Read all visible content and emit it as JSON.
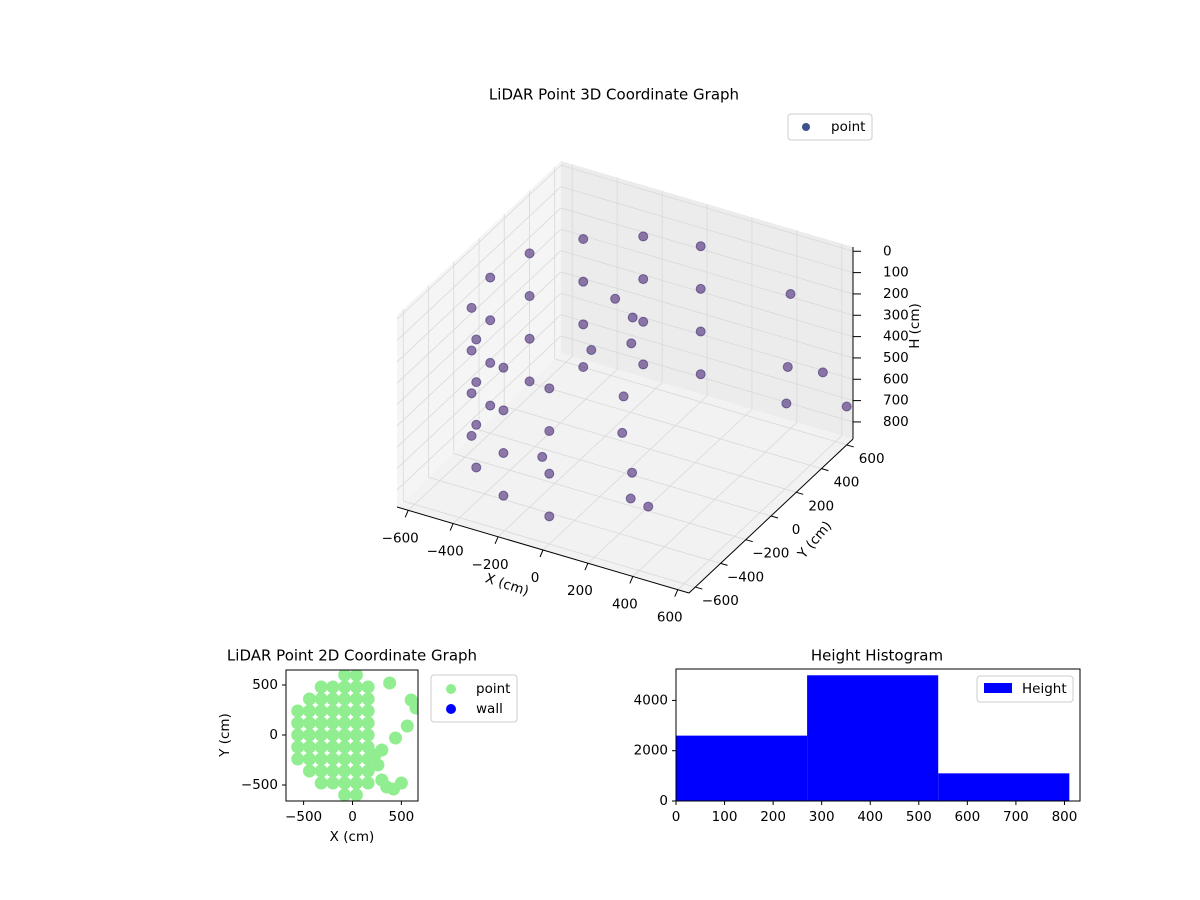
{
  "chart_data": [
    {
      "type": "scatter3d",
      "title": "LiDAR Point 3D Coordinate Graph",
      "x_label": "X (cm)",
      "y_label": "Y (cm)",
      "z_label": "H (cm)",
      "xlim": [
        -650,
        650
      ],
      "ylim": [
        -650,
        650
      ],
      "zlim": [
        -20,
        880
      ],
      "z_inverted": true,
      "xticks": [
        {
          "value": -600,
          "label": "−600"
        },
        {
          "value": -400,
          "label": "−400"
        },
        {
          "value": -200,
          "label": "−200"
        },
        0,
        200,
        400,
        600
      ],
      "yticks": [
        {
          "value": -600,
          "label": "−600"
        },
        {
          "value": -400,
          "label": "−400"
        },
        {
          "value": -200,
          "label": "−200"
        },
        0,
        200,
        400,
        600
      ],
      "zticks": [
        0,
        100,
        200,
        300,
        400,
        500,
        600,
        700,
        800
      ],
      "legend": "upper right",
      "series": [
        {
          "name": "point",
          "color": "#3b528b",
          "x": [
            0,
            0,
            0,
            0,
            -230,
            -230,
            -230,
            -230,
            -424,
            -424,
            -424,
            -424,
            -554,
            -554,
            -554,
            -554,
            -600,
            -600,
            -600,
            -600,
            -554,
            -554,
            -554,
            -554,
            -424,
            -424,
            -424,
            -424,
            -230,
            -230,
            -230,
            -230,
            0,
            0,
            0,
            0,
            -100,
            -50,
            0,
            -150,
            50,
            100,
            200,
            250,
            300,
            -200,
            500,
            600,
            550,
            400,
            650
          ],
          "y": [
            600,
            600,
            600,
            600,
            554,
            554,
            554,
            554,
            424,
            424,
            424,
            424,
            230,
            230,
            230,
            230,
            0,
            0,
            0,
            0,
            -230,
            -230,
            -230,
            -230,
            -424,
            -424,
            -424,
            -424,
            -554,
            -554,
            -554,
            -554,
            -600,
            -600,
            -600,
            -600,
            100,
            150,
            50,
            0,
            -100,
            -200,
            -300,
            -400,
            -350,
            -300,
            400,
            500,
            300,
            600,
            600
          ],
          "z": [
            150,
            350,
            550,
            750,
            150,
            350,
            550,
            750,
            150,
            350,
            550,
            750,
            150,
            350,
            550,
            750,
            150,
            350,
            550,
            750,
            150,
            350,
            550,
            750,
            150,
            350,
            550,
            750,
            150,
            350,
            550,
            750,
            150,
            350,
            550,
            750,
            150,
            250,
            300,
            350,
            450,
            550,
            650,
            700,
            750,
            700,
            450,
            500,
            550,
            250,
            700
          ]
        }
      ]
    },
    {
      "type": "scatter",
      "title": "LiDAR Point 2D Coordinate Graph",
      "x_label": "X (cm)",
      "y_label": "Y (cm)",
      "xlim": [
        -680,
        670
      ],
      "ylim": [
        -660,
        650
      ],
      "xticks": [
        {
          "value": -500,
          "label": "−500"
        },
        0,
        500
      ],
      "yticks": [
        {
          "value": -500,
          "label": "−500"
        },
        0,
        500
      ],
      "legend": "outside right",
      "series": [
        {
          "name": "point",
          "color": "#90ee90",
          "x": [
            -560,
            -560,
            -560,
            -560,
            -560,
            -440,
            -440,
            -440,
            -440,
            -440,
            -440,
            -440,
            -320,
            -320,
            -320,
            -320,
            -320,
            -320,
            -320,
            -320,
            -320,
            -200,
            -200,
            -200,
            -200,
            -200,
            -200,
            -200,
            -200,
            -200,
            -80,
            -80,
            -80,
            -80,
            -80,
            -80,
            -80,
            -80,
            -80,
            -80,
            -80,
            40,
            40,
            40,
            40,
            40,
            40,
            40,
            40,
            40,
            40,
            40,
            160,
            160,
            160,
            160,
            160,
            160,
            160,
            160,
            160,
            230,
            260,
            300,
            350,
            420,
            500,
            380,
            440,
            600,
            560,
            650,
            300
          ],
          "y": [
            -240,
            -120,
            0,
            120,
            240,
            -360,
            -240,
            -120,
            0,
            120,
            240,
            360,
            -480,
            -360,
            -240,
            -120,
            0,
            120,
            240,
            360,
            480,
            -480,
            -360,
            -240,
            -120,
            0,
            120,
            240,
            360,
            480,
            -600,
            -480,
            -360,
            -240,
            -120,
            0,
            120,
            240,
            360,
            480,
            600,
            -600,
            -480,
            -360,
            -240,
            -120,
            0,
            120,
            240,
            360,
            480,
            600,
            -480,
            -360,
            -240,
            -120,
            0,
            120,
            240,
            360,
            480,
            -200,
            -300,
            -450,
            -520,
            -540,
            -480,
            520,
            -30,
            350,
            90,
            270,
            -150
          ]
        },
        {
          "name": "wall",
          "color": "#0000ff",
          "x": [],
          "y": []
        }
      ]
    },
    {
      "type": "histogram",
      "title": "Height Histogram",
      "bins": [
        0,
        270,
        540,
        810
      ],
      "series": [
        {
          "name": "Height",
          "color": "#0000ff",
          "values": [
            2600,
            5000,
            1100
          ]
        }
      ],
      "xlim": [
        0,
        832
      ],
      "ylim": [
        0,
        5250
      ],
      "xticks": [
        0,
        100,
        200,
        300,
        400,
        500,
        600,
        700,
        800
      ],
      "yticks": [
        0,
        2000,
        4000
      ],
      "legend": "upper right"
    }
  ]
}
